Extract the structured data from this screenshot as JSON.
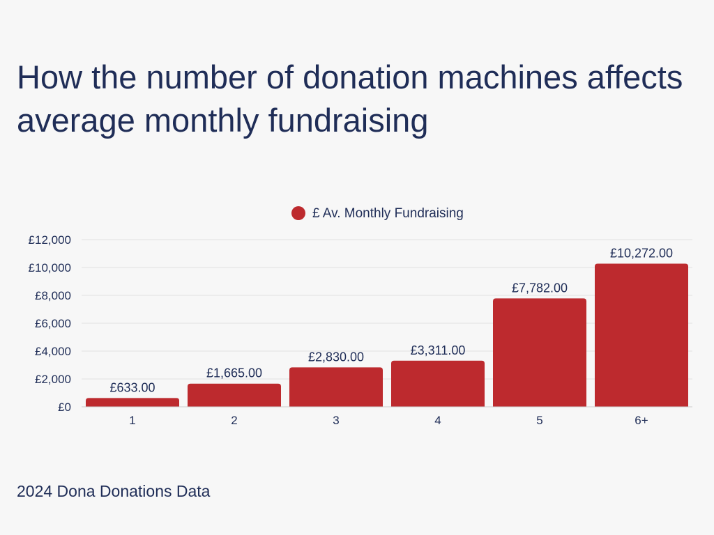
{
  "title": "How the number of donation machines affects average monthly fundraising",
  "footer": "2024 Dona Donations Data",
  "chart_data": {
    "type": "bar",
    "title": "How the number of donation machines affects average monthly fundraising",
    "xlabel": "",
    "ylabel": "",
    "categories": [
      "1",
      "2",
      "3",
      "4",
      "5",
      "6+"
    ],
    "series": [
      {
        "name": "£ Av. Monthly Fundraising",
        "values": [
          633,
          1665,
          2830,
          3311,
          7782,
          10272
        ],
        "labels": [
          "£633.00",
          "£1,665.00",
          "£2,830.00",
          "£3,311.00",
          "£7,782.00",
          "£10,272.00"
        ],
        "color": "#bd2a2e"
      }
    ],
    "ylim": [
      0,
      12000
    ],
    "yticks": [
      0,
      2000,
      4000,
      6000,
      8000,
      10000,
      12000
    ],
    "ytick_labels": [
      "£0",
      "£2,000",
      "£4,000",
      "£6,000",
      "£8,000",
      "£10,000",
      "£12,000"
    ],
    "grid": true,
    "legend_position": "top-center",
    "text_color": "#1f2d57",
    "grid_color": "#e0e0e0"
  }
}
